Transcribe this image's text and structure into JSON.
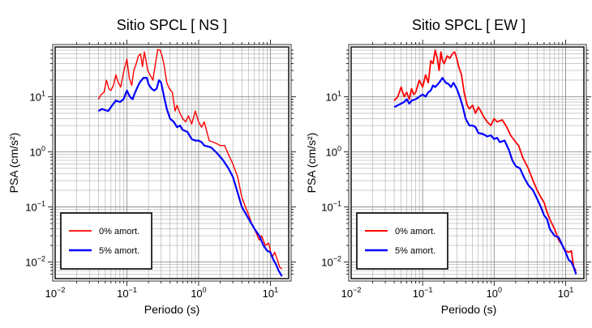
{
  "chart_data": [
    {
      "type": "line",
      "title": "Sitio SPCL [ NS ]",
      "xlabel": "Periodo (s)",
      "ylabel": "PSA (cm/s²)",
      "xscale": "log",
      "yscale": "log",
      "xlim": [
        0.01,
        18
      ],
      "ylim": [
        0.005,
        80
      ],
      "grid": true,
      "legend_position": "bottom-left",
      "x_ticks": [
        {
          "value": 0.01,
          "base": "10",
          "exp": "−2"
        },
        {
          "value": 0.1,
          "base": "10",
          "exp": "−1"
        },
        {
          "value": 1,
          "base": "10",
          "exp": "0"
        },
        {
          "value": 10,
          "base": "10",
          "exp": "1"
        }
      ],
      "y_ticks": [
        {
          "value": 0.01,
          "base": "10",
          "exp": "−2"
        },
        {
          "value": 0.1,
          "base": "10",
          "exp": "−1"
        },
        {
          "value": 1,
          "base": "10",
          "exp": "0"
        },
        {
          "value": 10,
          "base": "10",
          "exp": "1"
        }
      ],
      "series": [
        {
          "name": "0% amort.",
          "color": "#ff0000",
          "width": 1.4,
          "points": [
            [
              0.04,
              9
            ],
            [
              0.044,
              11
            ],
            [
              0.048,
              12
            ],
            [
              0.052,
              20
            ],
            [
              0.056,
              14
            ],
            [
              0.06,
              13
            ],
            [
              0.065,
              16
            ],
            [
              0.07,
              25
            ],
            [
              0.076,
              18
            ],
            [
              0.082,
              15
            ],
            [
              0.09,
              28
            ],
            [
              0.1,
              48
            ],
            [
              0.108,
              22
            ],
            [
              0.117,
              16
            ],
            [
              0.125,
              30
            ],
            [
              0.135,
              40
            ],
            [
              0.145,
              55
            ],
            [
              0.155,
              60
            ],
            [
              0.165,
              35
            ],
            [
              0.175,
              65
            ],
            [
              0.185,
              45
            ],
            [
              0.195,
              30
            ],
            [
              0.21,
              25
            ],
            [
              0.23,
              20
            ],
            [
              0.25,
              40
            ],
            [
              0.27,
              72
            ],
            [
              0.29,
              70
            ],
            [
              0.31,
              55
            ],
            [
              0.33,
              38
            ],
            [
              0.36,
              18
            ],
            [
              0.39,
              14
            ],
            [
              0.43,
              12
            ],
            [
              0.47,
              5.5
            ],
            [
              0.5,
              7
            ],
            [
              0.55,
              5
            ],
            [
              0.6,
              4
            ],
            [
              0.66,
              3.5
            ],
            [
              0.72,
              4.5
            ],
            [
              0.8,
              3.2
            ],
            [
              0.9,
              5.5
            ],
            [
              1.0,
              3.5
            ],
            [
              1.1,
              2.8
            ],
            [
              1.2,
              3.5
            ],
            [
              1.4,
              1.6
            ],
            [
              1.6,
              1.5
            ],
            [
              1.8,
              1.4
            ],
            [
              2.0,
              1.3
            ],
            [
              2.3,
              1.3
            ],
            [
              2.6,
              0.9
            ],
            [
              3.0,
              0.6
            ],
            [
              3.5,
              0.35
            ],
            [
              4.0,
              0.15
            ],
            [
              4.5,
              0.1
            ],
            [
              5.0,
              0.07
            ],
            [
              5.5,
              0.05
            ],
            [
              6.0,
              0.04
            ],
            [
              7.0,
              0.025
            ],
            [
              7.5,
              0.03
            ],
            [
              8.5,
              0.02
            ],
            [
              9.5,
              0.022
            ],
            [
              10.5,
              0.012
            ],
            [
              11.5,
              0.015
            ],
            [
              12.5,
              0.011
            ],
            [
              13.5,
              0.008
            ],
            [
              14.5,
              0.0075
            ]
          ]
        },
        {
          "name": "5% amort.",
          "color": "#0000ff",
          "width": 2.2,
          "points": [
            [
              0.04,
              5.5
            ],
            [
              0.045,
              6
            ],
            [
              0.05,
              5.7
            ],
            [
              0.055,
              5.5
            ],
            [
              0.06,
              6.5
            ],
            [
              0.07,
              8.5
            ],
            [
              0.08,
              8
            ],
            [
              0.09,
              9
            ],
            [
              0.1,
              13
            ],
            [
              0.11,
              10
            ],
            [
              0.12,
              9
            ],
            [
              0.13,
              12
            ],
            [
              0.15,
              18
            ],
            [
              0.17,
              22
            ],
            [
              0.19,
              22
            ],
            [
              0.2,
              17
            ],
            [
              0.22,
              14
            ],
            [
              0.24,
              13
            ],
            [
              0.26,
              14
            ],
            [
              0.28,
              20
            ],
            [
              0.3,
              18
            ],
            [
              0.33,
              10
            ],
            [
              0.36,
              6
            ],
            [
              0.4,
              4
            ],
            [
              0.45,
              3.5
            ],
            [
              0.5,
              2.8
            ],
            [
              0.55,
              3
            ],
            [
              0.6,
              2.5
            ],
            [
              0.7,
              2.3
            ],
            [
              0.8,
              1.7
            ],
            [
              0.9,
              1.6
            ],
            [
              1.0,
              1.6
            ],
            [
              1.1,
              1.5
            ],
            [
              1.2,
              1.3
            ],
            [
              1.5,
              1.2
            ],
            [
              1.8,
              0.95
            ],
            [
              2.2,
              0.7
            ],
            [
              2.6,
              0.5
            ],
            [
              3.0,
              0.35
            ],
            [
              3.5,
              0.18
            ],
            [
              4.0,
              0.1
            ],
            [
              5.0,
              0.06
            ],
            [
              6.0,
              0.04
            ],
            [
              7.0,
              0.03
            ],
            [
              8.0,
              0.02
            ],
            [
              9.0,
              0.016
            ],
            [
              10,
              0.015
            ],
            [
              11,
              0.011
            ],
            [
              12,
              0.009
            ],
            [
              13,
              0.007
            ],
            [
              14.5,
              0.0055
            ]
          ]
        }
      ]
    },
    {
      "type": "line",
      "title": "Sitio SPCL [ EW ]",
      "xlabel": "Periodo (s)",
      "ylabel": "PSA (cm/s²)",
      "xscale": "log",
      "yscale": "log",
      "xlim": [
        0.01,
        18
      ],
      "ylim": [
        0.005,
        80
      ],
      "grid": true,
      "legend_position": "bottom-left",
      "x_ticks": [
        {
          "value": 0.01,
          "base": "10",
          "exp": "−2"
        },
        {
          "value": 0.1,
          "base": "10",
          "exp": "−1"
        },
        {
          "value": 1,
          "base": "10",
          "exp": "0"
        },
        {
          "value": 10,
          "base": "10",
          "exp": "1"
        }
      ],
      "y_ticks": [
        {
          "value": 0.01,
          "base": "10",
          "exp": "−2"
        },
        {
          "value": 0.1,
          "base": "10",
          "exp": "−1"
        },
        {
          "value": 1,
          "base": "10",
          "exp": "0"
        },
        {
          "value": 10,
          "base": "10",
          "exp": "1"
        }
      ],
      "series": [
        {
          "name": "0% amort.",
          "color": "#ff0000",
          "width": 1.8,
          "points": [
            [
              0.04,
              8.5
            ],
            [
              0.045,
              10
            ],
            [
              0.05,
              15
            ],
            [
              0.055,
              10
            ],
            [
              0.06,
              12
            ],
            [
              0.065,
              9
            ],
            [
              0.07,
              14
            ],
            [
              0.075,
              11
            ],
            [
              0.08,
              12
            ],
            [
              0.09,
              20
            ],
            [
              0.1,
              15
            ],
            [
              0.11,
              25
            ],
            [
              0.12,
              18
            ],
            [
              0.13,
              45
            ],
            [
              0.14,
              40
            ],
            [
              0.15,
              70
            ],
            [
              0.16,
              50
            ],
            [
              0.17,
              30
            ],
            [
              0.18,
              65
            ],
            [
              0.19,
              45
            ],
            [
              0.2,
              40
            ],
            [
              0.22,
              55
            ],
            [
              0.24,
              50
            ],
            [
              0.26,
              60
            ],
            [
              0.28,
              65
            ],
            [
              0.3,
              50
            ],
            [
              0.32,
              35
            ],
            [
              0.35,
              25
            ],
            [
              0.38,
              12
            ],
            [
              0.42,
              7
            ],
            [
              0.45,
              6
            ],
            [
              0.5,
              7
            ],
            [
              0.55,
              5
            ],
            [
              0.6,
              6.5
            ],
            [
              0.65,
              5.5
            ],
            [
              0.7,
              4.5
            ],
            [
              0.8,
              3.5
            ],
            [
              0.9,
              3
            ],
            [
              1.0,
              4
            ],
            [
              1.1,
              3.5
            ],
            [
              1.3,
              3.8
            ],
            [
              1.5,
              2.8
            ],
            [
              1.7,
              2
            ],
            [
              2.0,
              1.5
            ],
            [
              2.2,
              1.3
            ],
            [
              2.5,
              0.8
            ],
            [
              3.0,
              0.5
            ],
            [
              3.5,
              0.3
            ],
            [
              4.0,
              0.2
            ],
            [
              4.5,
              0.15
            ],
            [
              5.0,
              0.12
            ],
            [
              5.5,
              0.08
            ],
            [
              6.0,
              0.06
            ],
            [
              7.0,
              0.04
            ],
            [
              8.0,
              0.025
            ],
            [
              9.0,
              0.02
            ],
            [
              10.0,
              0.016
            ],
            [
              11.0,
              0.015
            ],
            [
              12.0,
              0.016
            ],
            [
              13.0,
              0.008
            ],
            [
              14.0,
              0.007
            ]
          ]
        },
        {
          "name": "5% amort.",
          "color": "#0000ff",
          "width": 2.2,
          "points": [
            [
              0.04,
              6.5
            ],
            [
              0.045,
              7
            ],
            [
              0.05,
              7.5
            ],
            [
              0.055,
              8
            ],
            [
              0.06,
              9
            ],
            [
              0.065,
              7.5
            ],
            [
              0.07,
              8.5
            ],
            [
              0.08,
              9
            ],
            [
              0.09,
              10
            ],
            [
              0.1,
              11
            ],
            [
              0.11,
              10
            ],
            [
              0.12,
              12
            ],
            [
              0.13,
              13
            ],
            [
              0.14,
              16
            ],
            [
              0.15,
              15
            ],
            [
              0.17,
              18
            ],
            [
              0.19,
              22
            ],
            [
              0.21,
              18
            ],
            [
              0.23,
              17
            ],
            [
              0.25,
              15
            ],
            [
              0.27,
              18
            ],
            [
              0.3,
              14
            ],
            [
              0.33,
              10
            ],
            [
              0.36,
              7
            ],
            [
              0.4,
              4
            ],
            [
              0.45,
              3
            ],
            [
              0.5,
              3
            ],
            [
              0.55,
              2.8
            ],
            [
              0.6,
              2.2
            ],
            [
              0.7,
              2.1
            ],
            [
              0.8,
              1.9
            ],
            [
              0.9,
              2
            ],
            [
              1.0,
              1.7
            ],
            [
              1.1,
              1.8
            ],
            [
              1.2,
              1.5
            ],
            [
              1.4,
              1.6
            ],
            [
              1.6,
              1.1
            ],
            [
              1.8,
              0.7
            ],
            [
              2.0,
              0.55
            ],
            [
              2.3,
              0.5
            ],
            [
              2.6,
              0.35
            ],
            [
              3.0,
              0.25
            ],
            [
              3.5,
              0.2
            ],
            [
              4.0,
              0.14
            ],
            [
              4.5,
              0.1
            ],
            [
              5.0,
              0.07
            ],
            [
              5.5,
              0.06
            ],
            [
              6.0,
              0.04
            ],
            [
              7.0,
              0.03
            ],
            [
              8.0,
              0.028
            ],
            [
              9.0,
              0.02
            ],
            [
              10.0,
              0.015
            ],
            [
              11.0,
              0.011
            ],
            [
              12.0,
              0.01
            ],
            [
              13.0,
              0.008
            ],
            [
              14.0,
              0.006
            ]
          ]
        }
      ]
    }
  ]
}
